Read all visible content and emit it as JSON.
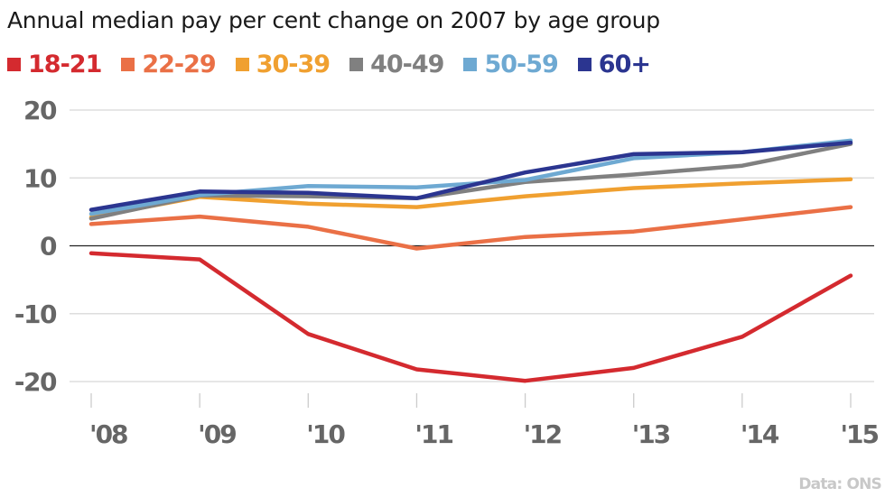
{
  "chart_data": {
    "type": "line",
    "title": "Annual median pay per cent change on 2007 by age group",
    "xlabel": "",
    "ylabel": "",
    "x": [
      "'08",
      "'09",
      "'10",
      "'11",
      "'12",
      "'13",
      "'14",
      "'15"
    ],
    "y_ticks": [
      "20",
      "10",
      "0",
      "-10",
      "-20"
    ],
    "y_tick_values": [
      20,
      10,
      0,
      -10,
      -20
    ],
    "ylim": [
      -20,
      20
    ],
    "grid": true,
    "legend_position": "top-left",
    "series": [
      {
        "name": "18-21",
        "color": "#d42a2f",
        "values": [
          -1.1,
          -2.0,
          -13.0,
          -18.2,
          -19.9,
          -18.0,
          -13.4,
          -4.4
        ]
      },
      {
        "name": "22-29",
        "color": "#ea7046",
        "values": [
          3.2,
          4.3,
          2.8,
          -0.4,
          1.3,
          2.1,
          3.9,
          5.7
        ]
      },
      {
        "name": "30-39",
        "color": "#f0a030",
        "values": [
          4.2,
          7.2,
          6.2,
          5.7,
          7.3,
          8.5,
          9.2,
          9.8
        ]
      },
      {
        "name": "40-49",
        "color": "#808080",
        "values": [
          4.0,
          7.4,
          7.3,
          7.0,
          9.4,
          10.5,
          11.8,
          15.0
        ]
      },
      {
        "name": "50-59",
        "color": "#6ea9d2",
        "values": [
          4.7,
          7.5,
          8.8,
          8.6,
          9.7,
          12.9,
          13.8,
          15.5
        ]
      },
      {
        "name": "60+",
        "color": "#2b3590",
        "values": [
          5.3,
          8.0,
          7.8,
          7.0,
          10.8,
          13.5,
          13.8,
          15.2
        ]
      }
    ],
    "source": "Data: ONS"
  }
}
